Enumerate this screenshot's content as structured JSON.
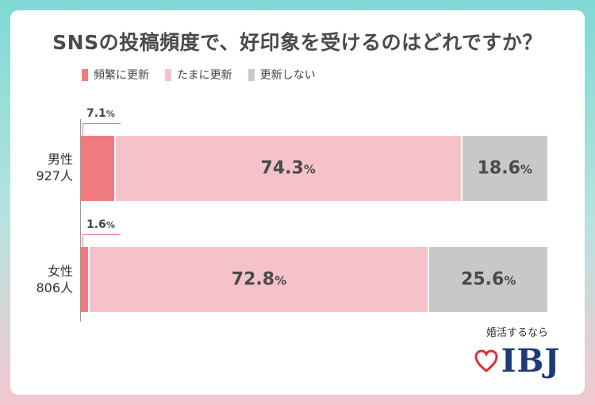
{
  "chart_data": {
    "type": "bar",
    "orientation": "horizontal-stacked",
    "title": "SNSの投稿頻度で、好印象を受けるのはどれですか？",
    "legend_position": "top-left",
    "series": [
      {
        "name": "頻繁に更新",
        "color": "#f07b7f"
      },
      {
        "name": "たまに更新",
        "color": "#f6c2c9"
      },
      {
        "name": "更新しない",
        "color": "#c9c7c8"
      }
    ],
    "rows": [
      {
        "label_line1": "男性",
        "label_line2": "927人",
        "values": [
          7.1,
          74.3,
          18.6
        ],
        "value_labels": [
          "7.1",
          "74.3",
          "18.6"
        ]
      },
      {
        "label_line1": "女性",
        "label_line2": "806人",
        "values": [
          1.6,
          72.8,
          25.6
        ],
        "value_labels": [
          "1.6",
          "72.8",
          "25.6"
        ]
      }
    ],
    "unit": "%"
  },
  "brand": {
    "tagline": "婚活するなら",
    "name": "IBJ",
    "heart_color": "#d9303a"
  }
}
